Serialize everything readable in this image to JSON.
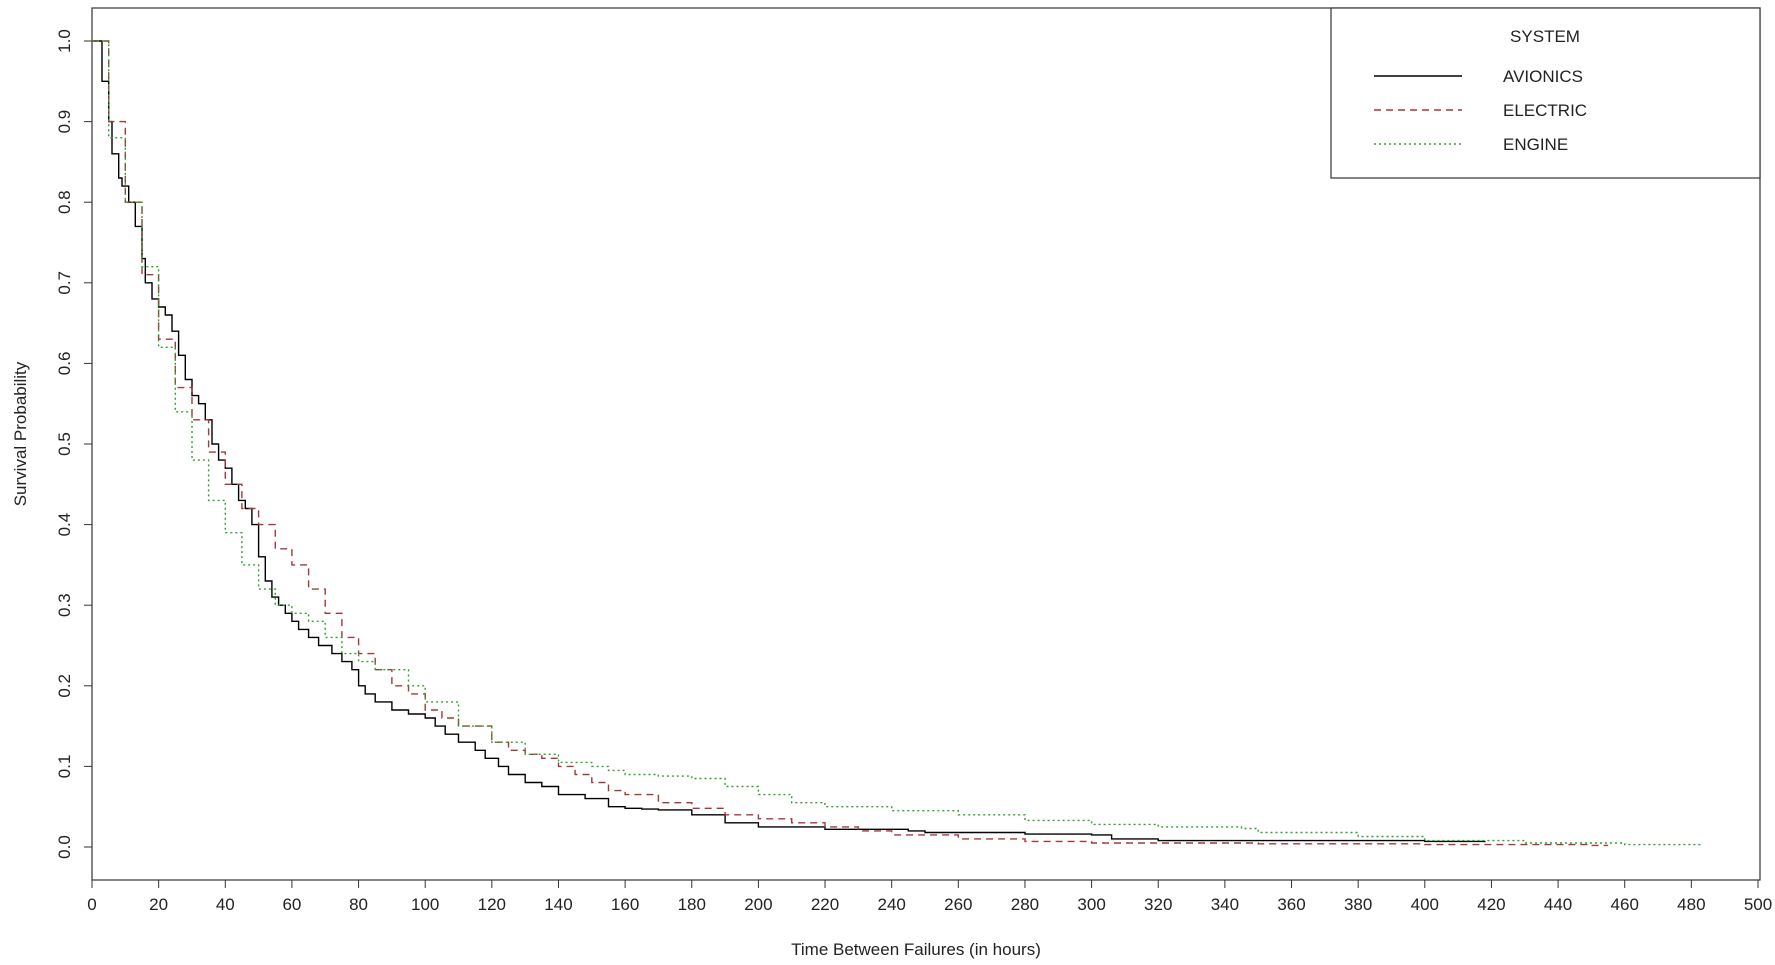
{
  "chart_data": {
    "type": "line",
    "step": true,
    "xlabel": "Time Between Failures (in hours)",
    "ylabel": "Survival Probability",
    "xlim": [
      0,
      500
    ],
    "ylim": [
      0,
      1
    ],
    "xticks": [
      0,
      20,
      40,
      60,
      80,
      100,
      120,
      140,
      160,
      180,
      200,
      220,
      240,
      260,
      280,
      300,
      320,
      340,
      360,
      380,
      400,
      420,
      440,
      460,
      480,
      500
    ],
    "yticks": [
      0.0,
      0.1,
      0.2,
      0.3,
      0.4,
      0.5,
      0.6,
      0.7,
      0.8,
      0.9,
      1.0
    ],
    "ytick_labels": [
      "0.0",
      "0.1",
      "0.2",
      "0.3",
      "0.4",
      "0.5",
      "0.6",
      "0.7",
      "0.8",
      "0.9",
      "1.0"
    ],
    "grid": false,
    "legend": {
      "title": "SYSTEM",
      "position": "top-right"
    },
    "series": [
      {
        "name": "AVIONICS",
        "color": "#000000",
        "dash": "solid",
        "x": [
          0,
          3,
          5,
          6,
          8,
          9,
          11,
          13,
          15,
          16,
          18,
          20,
          22,
          24,
          26,
          28,
          30,
          32,
          34,
          36,
          38,
          40,
          42,
          44,
          46,
          48,
          50,
          52,
          54,
          56,
          58,
          60,
          62,
          65,
          68,
          72,
          75,
          78,
          80,
          82,
          85,
          90,
          95,
          100,
          103,
          106,
          110,
          115,
          118,
          122,
          125,
          130,
          135,
          140,
          148,
          155,
          160,
          165,
          170,
          180,
          190,
          200,
          220,
          245,
          250,
          280,
          300,
          306,
          320,
          400,
          418
        ],
        "y": [
          1.0,
          0.95,
          0.9,
          0.86,
          0.83,
          0.82,
          0.8,
          0.77,
          0.73,
          0.7,
          0.68,
          0.67,
          0.66,
          0.64,
          0.61,
          0.58,
          0.56,
          0.55,
          0.53,
          0.5,
          0.48,
          0.47,
          0.45,
          0.43,
          0.42,
          0.4,
          0.36,
          0.33,
          0.31,
          0.3,
          0.29,
          0.28,
          0.27,
          0.26,
          0.25,
          0.24,
          0.23,
          0.22,
          0.2,
          0.19,
          0.18,
          0.17,
          0.165,
          0.16,
          0.15,
          0.14,
          0.13,
          0.12,
          0.11,
          0.1,
          0.09,
          0.08,
          0.075,
          0.065,
          0.06,
          0.05,
          0.048,
          0.047,
          0.046,
          0.04,
          0.03,
          0.025,
          0.022,
          0.02,
          0.018,
          0.016,
          0.015,
          0.01,
          0.008,
          0.007,
          0.006
        ]
      },
      {
        "name": "ELECTRIC",
        "color": "#a23a3a",
        "dash": "7,5",
        "x": [
          0,
          5,
          10,
          15,
          20,
          25,
          30,
          35,
          40,
          45,
          50,
          55,
          60,
          65,
          70,
          75,
          80,
          85,
          90,
          95,
          100,
          105,
          110,
          120,
          125,
          130,
          135,
          140,
          145,
          150,
          155,
          160,
          170,
          180,
          190,
          200,
          210,
          220,
          230,
          240,
          260,
          280,
          300,
          350,
          400,
          450,
          455
        ],
        "y": [
          1.0,
          0.9,
          0.8,
          0.71,
          0.63,
          0.57,
          0.53,
          0.49,
          0.45,
          0.42,
          0.4,
          0.37,
          0.35,
          0.32,
          0.29,
          0.26,
          0.24,
          0.22,
          0.2,
          0.19,
          0.17,
          0.16,
          0.15,
          0.13,
          0.12,
          0.115,
          0.11,
          0.1,
          0.09,
          0.08,
          0.07,
          0.065,
          0.055,
          0.048,
          0.04,
          0.035,
          0.03,
          0.025,
          0.02,
          0.015,
          0.01,
          0.007,
          0.005,
          0.004,
          0.003,
          0.002,
          0.002
        ]
      },
      {
        "name": "ENGINE",
        "color": "#2ea02e",
        "dash": "2,3",
        "x": [
          0,
          5,
          10,
          15,
          20,
          25,
          30,
          35,
          40,
          45,
          50,
          55,
          60,
          65,
          70,
          75,
          80,
          85,
          90,
          95,
          100,
          110,
          120,
          130,
          140,
          150,
          155,
          160,
          170,
          180,
          190,
          200,
          210,
          220,
          240,
          260,
          280,
          300,
          320,
          345,
          350,
          380,
          400,
          430,
          460,
          483
        ],
        "y": [
          1.0,
          0.88,
          0.8,
          0.72,
          0.62,
          0.54,
          0.48,
          0.43,
          0.39,
          0.35,
          0.32,
          0.3,
          0.29,
          0.28,
          0.26,
          0.24,
          0.23,
          0.22,
          0.22,
          0.2,
          0.18,
          0.15,
          0.13,
          0.115,
          0.105,
          0.1,
          0.095,
          0.09,
          0.088,
          0.085,
          0.075,
          0.065,
          0.055,
          0.05,
          0.045,
          0.04,
          0.033,
          0.028,
          0.025,
          0.023,
          0.018,
          0.013,
          0.008,
          0.005,
          0.003,
          0.002
        ]
      }
    ]
  }
}
